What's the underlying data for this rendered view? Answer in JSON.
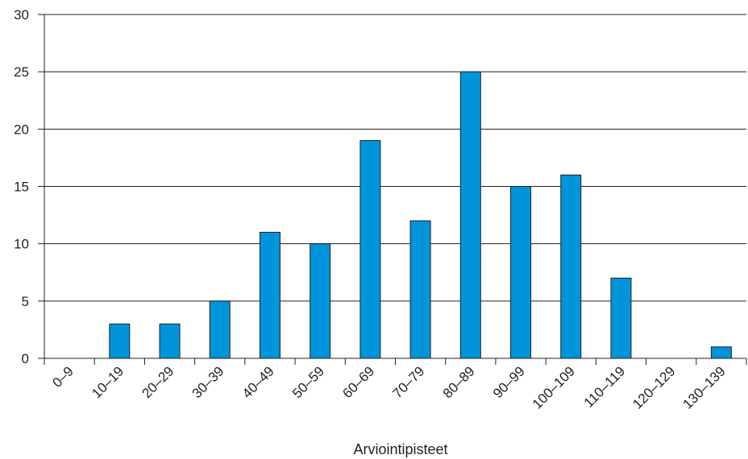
{
  "chart_data": {
    "type": "bar",
    "categories": [
      "0–9",
      "10–19",
      "20–29",
      "30–39",
      "40–49",
      "50–59",
      "60–69",
      "70–79",
      "80–89",
      "90–99",
      "100–109",
      "110–119",
      "120–129",
      "130–139"
    ],
    "values": [
      0,
      3,
      3,
      5,
      11,
      10,
      19,
      12,
      25,
      15,
      16,
      7,
      0,
      1
    ],
    "title": "",
    "xlabel": "Arviointipisteet",
    "ylabel": "",
    "ylim": [
      0,
      30
    ],
    "yticks": [
      "0",
      "5",
      "10",
      "15",
      "20",
      "25",
      "30"
    ],
    "grid": "horizontal",
    "legend": "none",
    "bar_color": "#0095da",
    "bar_outline": "#231f20"
  }
}
